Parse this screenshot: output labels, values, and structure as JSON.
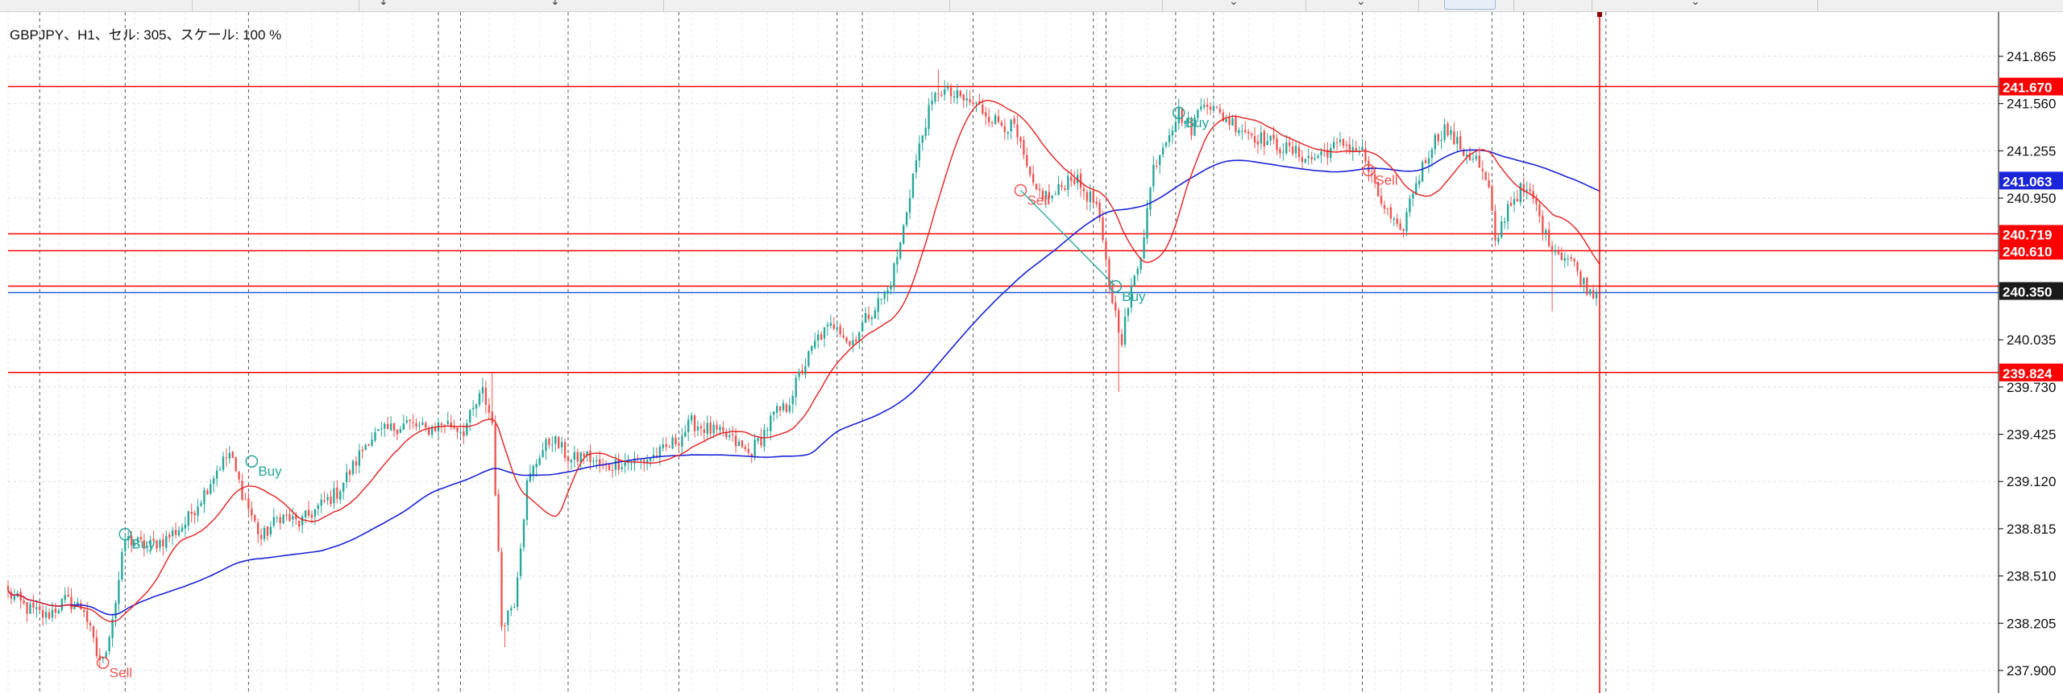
{
  "header": {
    "info": "GBPJPY、H1、セル: 305、スケール: 100 %"
  },
  "toolbar": {
    "glyphs": [
      "↓",
      "↓",
      "⌄",
      "⌄",
      "⌄",
      "⌄"
    ]
  },
  "colors": {
    "bull": "#26a69a",
    "bear": "#ef5350",
    "fast_ma": "#e52020",
    "slow_ma": "#1a24d8",
    "price_line": "#ff0000",
    "ask_line": "#1f5fd0",
    "grid": "#d9d9d9",
    "vgrid": "#555555"
  },
  "chart_data": {
    "type": "candlestick",
    "symbol": "GBPJPY",
    "timeframe": "H1",
    "ylim": [
      237.75,
      242.05
    ],
    "y_ticks": [
      "241.865",
      "241.560",
      "241.255",
      "240.950",
      "240.035",
      "239.730",
      "239.425",
      "239.120",
      "238.815",
      "238.510",
      "238.205",
      "237.900"
    ],
    "levels": [
      {
        "price": 241.67,
        "label": "241.670",
        "color": "#ff0000"
      },
      {
        "price": 240.719,
        "label": "240.719",
        "color": "#ff0000"
      },
      {
        "price": 240.61,
        "label": "240.610",
        "color": "#ff0000"
      },
      {
        "price": 239.824,
        "label": "239.824",
        "color": "#ff0000"
      }
    ],
    "current_price": {
      "price": 240.35,
      "label": "240.350",
      "color": "#1a1a1a"
    },
    "ma_slow_value": {
      "price": 241.063,
      "label": "241.063",
      "color": "#1a24d8"
    },
    "signals": [
      {
        "text": "Sell",
        "type": "sell",
        "candle": 30,
        "price": 237.95
      },
      {
        "text": "Buy",
        "type": "buy",
        "candle": 37,
        "price": 238.78
      },
      {
        "text": "Buy",
        "type": "buy",
        "candle": 77,
        "price": 239.25
      },
      {
        "text": "Buy",
        "type": "buy",
        "candle": 350,
        "price": 240.38
      },
      {
        "text": "Buy",
        "type": "buy",
        "candle": 370,
        "price": 241.5
      },
      {
        "text": "Sell",
        "type": "sell",
        "candle": 320,
        "price": 241.0
      },
      {
        "text": "Sell",
        "type": "sell",
        "candle": 430,
        "price": 241.13
      }
    ],
    "anchors": [
      [
        0,
        238.4
      ],
      [
        6,
        238.3
      ],
      [
        12,
        238.25
      ],
      [
        18,
        238.35
      ],
      [
        24,
        238.3
      ],
      [
        28,
        238.0
      ],
      [
        30,
        237.95
      ],
      [
        34,
        238.35
      ],
      [
        37,
        238.75
      ],
      [
        44,
        238.7
      ],
      [
        50,
        238.75
      ],
      [
        56,
        238.85
      ],
      [
        62,
        239.05
      ],
      [
        66,
        239.2
      ],
      [
        70,
        239.3
      ],
      [
        74,
        239.05
      ],
      [
        80,
        238.75
      ],
      [
        86,
        238.9
      ],
      [
        92,
        238.85
      ],
      [
        98,
        238.95
      ],
      [
        104,
        239.05
      ],
      [
        110,
        239.25
      ],
      [
        114,
        239.4
      ],
      [
        120,
        239.45
      ],
      [
        126,
        239.5
      ],
      [
        132,
        239.45
      ],
      [
        138,
        239.5
      ],
      [
        144,
        239.45
      ],
      [
        150,
        239.7
      ],
      [
        153,
        239.5
      ],
      [
        156,
        238.2
      ],
      [
        160,
        238.35
      ],
      [
        164,
        239.1
      ],
      [
        168,
        239.3
      ],
      [
        172,
        239.4
      ],
      [
        178,
        239.25
      ],
      [
        182,
        239.3
      ],
      [
        188,
        239.2
      ],
      [
        194,
        239.25
      ],
      [
        200,
        239.25
      ],
      [
        206,
        239.3
      ],
      [
        212,
        239.4
      ],
      [
        216,
        239.5
      ],
      [
        222,
        239.45
      ],
      [
        228,
        239.4
      ],
      [
        234,
        239.3
      ],
      [
        238,
        239.4
      ],
      [
        242,
        239.55
      ],
      [
        246,
        239.6
      ],
      [
        250,
        239.8
      ],
      [
        256,
        240.05
      ],
      [
        262,
        240.15
      ],
      [
        266,
        240.0
      ],
      [
        272,
        240.2
      ],
      [
        278,
        240.35
      ],
      [
        282,
        240.65
      ],
      [
        286,
        241.1
      ],
      [
        290,
        241.45
      ],
      [
        294,
        241.65
      ],
      [
        300,
        241.6
      ],
      [
        306,
        241.55
      ],
      [
        312,
        241.45
      ],
      [
        318,
        241.4
      ],
      [
        324,
        241.0
      ],
      [
        330,
        240.95
      ],
      [
        336,
        241.1
      ],
      [
        340,
        241.0
      ],
      [
        344,
        240.9
      ],
      [
        348,
        240.4
      ],
      [
        350,
        240.2
      ],
      [
        352,
        240.05
      ],
      [
        355,
        240.35
      ],
      [
        358,
        240.6
      ],
      [
        362,
        241.15
      ],
      [
        366,
        241.35
      ],
      [
        370,
        241.5
      ],
      [
        374,
        241.4
      ],
      [
        378,
        241.6
      ],
      [
        382,
        241.5
      ],
      [
        386,
        241.45
      ],
      [
        390,
        241.4
      ],
      [
        394,
        241.35
      ],
      [
        400,
        241.3
      ],
      [
        406,
        241.25
      ],
      [
        412,
        241.2
      ],
      [
        416,
        241.25
      ],
      [
        422,
        241.3
      ],
      [
        428,
        241.25
      ],
      [
        432,
        241.0
      ],
      [
        436,
        240.85
      ],
      [
        440,
        240.7
      ],
      [
        444,
        241.0
      ],
      [
        450,
        241.3
      ],
      [
        454,
        241.4
      ],
      [
        460,
        241.25
      ],
      [
        464,
        241.2
      ],
      [
        468,
        241.0
      ],
      [
        470,
        240.65
      ],
      [
        474,
        240.9
      ],
      [
        478,
        241.0
      ],
      [
        482,
        240.95
      ],
      [
        486,
        240.7
      ],
      [
        490,
        240.6
      ],
      [
        494,
        240.55
      ],
      [
        498,
        240.4
      ],
      [
        500,
        240.35
      ],
      [
        503,
        240.35
      ]
    ],
    "candle_count": 504,
    "ma_fast_period": 20,
    "ma_slow_period": 100,
    "vgrid_candles": [
      10,
      37,
      76,
      136,
      143,
      177,
      212,
      262,
      270,
      305,
      343,
      347,
      369,
      381,
      428,
      469,
      479,
      505
    ]
  }
}
